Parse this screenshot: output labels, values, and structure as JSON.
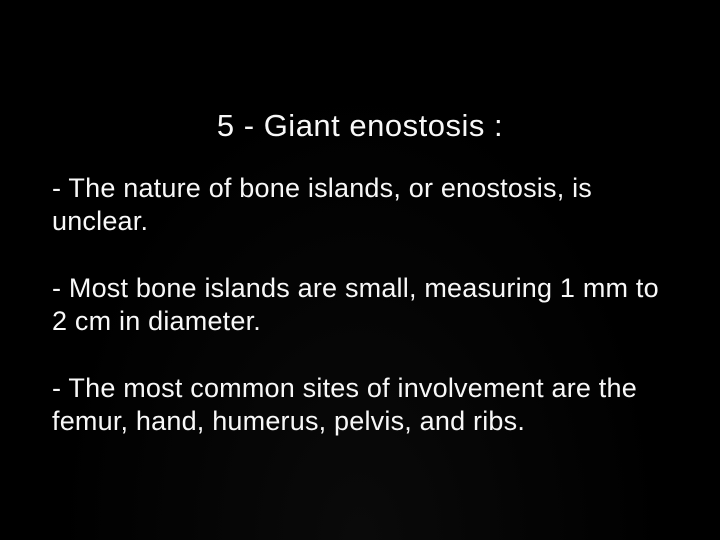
{
  "slide": {
    "title": "5  -  Giant enostosis  :",
    "bullets": [
      "- The nature of bone islands, or enostosis, is unclear.",
      "- Most bone islands are small, measuring 1 mm to 2 cm in diameter.",
      "- The most common sites of involvement are the femur, hand, humerus, pelvis, and ribs."
    ]
  },
  "style": {
    "background_color": "#000000",
    "text_color": "#f8f8f8",
    "title_fontsize": 31,
    "body_fontsize": 27,
    "font_family": "Arial"
  }
}
